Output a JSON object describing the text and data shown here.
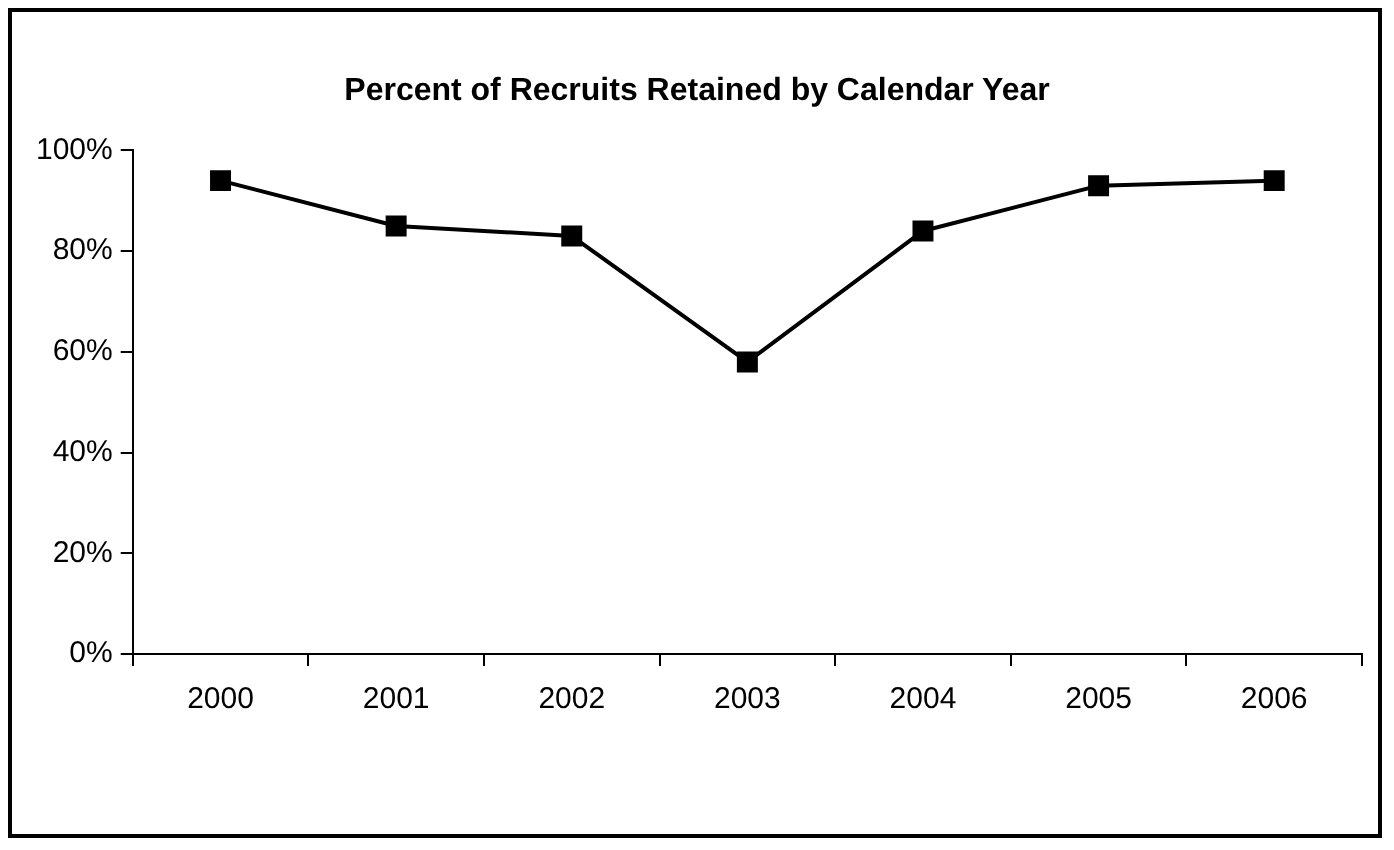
{
  "chart_data": {
    "type": "line",
    "title": "Percent of Recruits Retained by Calendar Year",
    "categories": [
      "2000",
      "2001",
      "2002",
      "2003",
      "2004",
      "2005",
      "2006"
    ],
    "series": [
      {
        "color": "#000000",
        "values": [
          94,
          85,
          83,
          58,
          84,
          93,
          94
        ]
      }
    ],
    "ylim": [
      0,
      100
    ],
    "yticks": [
      {
        "value": 0,
        "label": "0%"
      },
      {
        "value": 20,
        "label": "20%"
      },
      {
        "value": 40,
        "label": "40%"
      },
      {
        "value": 60,
        "label": "60%"
      },
      {
        "value": 80,
        "label": "80%"
      },
      {
        "value": 100,
        "label": "100%"
      }
    ],
    "grid": false,
    "legend": false,
    "marker": "square",
    "line_style": "solid"
  }
}
